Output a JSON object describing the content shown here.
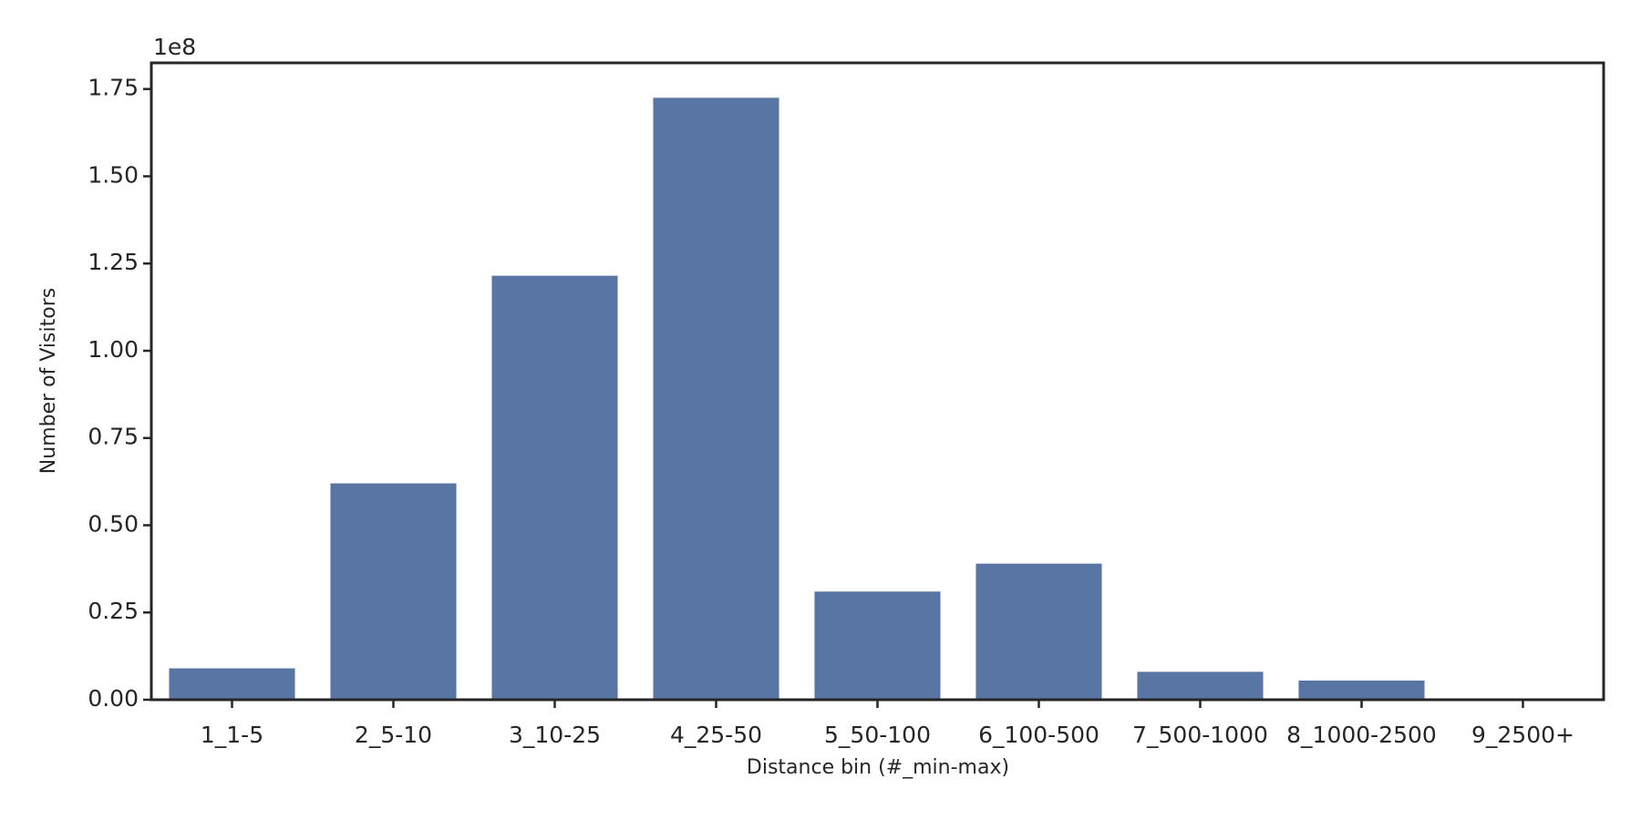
{
  "chart_data": {
    "type": "bar",
    "x_label": "Distance bin (#_min-max)",
    "y_label": "Number of Visitors",
    "y_offset_label": "1e8",
    "categories": [
      "1_1-5",
      "2_5-10",
      "3_10-25",
      "4_25-50",
      "5_50-100",
      "6_100-500",
      "7_500-1000",
      "8_1000-2500",
      "9_2500+"
    ],
    "values": [
      0.09,
      0.62,
      1.215,
      1.725,
      0.31,
      0.39,
      0.08,
      0.055,
      0
    ],
    "color": "#5975a4",
    "ylim": [
      0,
      1.825
    ],
    "yticks": [
      {
        "value": 0,
        "label": "0.00"
      },
      {
        "value": 0.25,
        "label": "0.25"
      },
      {
        "value": 0.5,
        "label": "0.50"
      },
      {
        "value": 0.75,
        "label": "0.75"
      },
      {
        "value": 1,
        "label": "1.00"
      },
      {
        "value": 1.25,
        "label": "1.25"
      },
      {
        "value": 1.5,
        "label": "1.50"
      },
      {
        "value": 1.75,
        "label": "1.75"
      }
    ],
    "grid": false
  }
}
